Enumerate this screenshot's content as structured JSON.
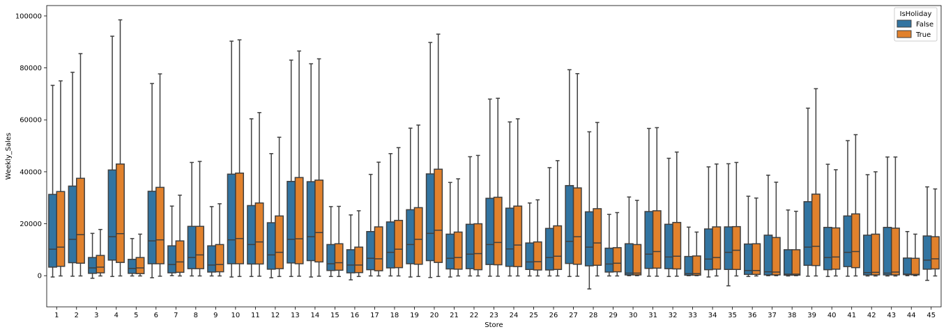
{
  "chart_data": {
    "type": "boxplot",
    "xlabel": "Store",
    "ylabel": "Weekly_Sales",
    "ylim": [
      -12000,
      104000
    ],
    "yticks": [
      0,
      20000,
      40000,
      60000,
      80000,
      100000
    ],
    "grid": false,
    "legend": {
      "title": "IsHoliday",
      "placement": "top-right"
    },
    "colors": {
      "False": "#3274a1",
      "True": "#e1812c",
      "line": "#3f3f3f"
    },
    "categories": [
      "1",
      "2",
      "3",
      "4",
      "5",
      "6",
      "7",
      "8",
      "9",
      "10",
      "11",
      "12",
      "13",
      "14",
      "15",
      "16",
      "17",
      "18",
      "19",
      "20",
      "21",
      "22",
      "23",
      "24",
      "25",
      "26",
      "27",
      "28",
      "29",
      "30",
      "31",
      "32",
      "33",
      "34",
      "35",
      "36",
      "37",
      "38",
      "39",
      "40",
      "41",
      "42",
      "43",
      "44",
      "45"
    ],
    "series": [
      {
        "name": "False",
        "boxes": [
          {
            "whislo": -500,
            "q1": 3300,
            "med": 10200,
            "q3": 31300,
            "whishi": 73300
          },
          {
            "whislo": -200,
            "q1": 5000,
            "med": 14000,
            "q3": 34500,
            "whishi": 78300
          },
          {
            "whislo": -1000,
            "q1": 900,
            "med": 3000,
            "q3": 7000,
            "whishi": 16300
          },
          {
            "whislo": -300,
            "q1": 6000,
            "med": 15000,
            "q3": 40700,
            "whishi": 92200
          },
          {
            "whislo": -100,
            "q1": 900,
            "med": 2800,
            "q3": 6300,
            "whishi": 14300
          },
          {
            "whislo": -800,
            "q1": 4600,
            "med": 13400,
            "q3": 32500,
            "whishi": 74000
          },
          {
            "whislo": 0,
            "q1": 1100,
            "med": 4300,
            "q3": 11500,
            "whishi": 26800
          },
          {
            "whislo": -100,
            "q1": 2700,
            "med": 7000,
            "q3": 19000,
            "whishi": 43600
          },
          {
            "whislo": -100,
            "q1": 1400,
            "med": 4100,
            "q3": 11500,
            "whishi": 26600
          },
          {
            "whislo": -500,
            "q1": 4600,
            "med": 13800,
            "q3": 39100,
            "whishi": 90300
          },
          {
            "whislo": -300,
            "q1": 4500,
            "med": 12000,
            "q3": 27000,
            "whishi": 60400
          },
          {
            "whislo": -800,
            "q1": 2500,
            "med": 8000,
            "q3": 20400,
            "whishi": 47000
          },
          {
            "whislo": -300,
            "q1": 4900,
            "med": 14000,
            "q3": 36300,
            "whishi": 83000
          },
          {
            "whislo": -500,
            "q1": 5800,
            "med": 15000,
            "q3": 36200,
            "whishi": 81600
          },
          {
            "whislo": -300,
            "q1": 2000,
            "med": 4600,
            "q3": 12000,
            "whishi": 26600
          },
          {
            "whislo": -1600,
            "q1": 1100,
            "med": 4100,
            "q3": 10000,
            "whishi": 23400
          },
          {
            "whislo": -100,
            "q1": 2300,
            "med": 6700,
            "q3": 17000,
            "whishi": 39000
          },
          {
            "whislo": -100,
            "q1": 3000,
            "med": 9000,
            "q3": 20700,
            "whishi": 47000
          },
          {
            "whislo": -500,
            "q1": 4600,
            "med": 12000,
            "q3": 25400,
            "whishi": 56800
          },
          {
            "whislo": -700,
            "q1": 5800,
            "med": 16300,
            "q3": 39200,
            "whishi": 89800
          },
          {
            "whislo": -500,
            "q1": 2600,
            "med": 6700,
            "q3": 16000,
            "whishi": 35900
          },
          {
            "whislo": -100,
            "q1": 2700,
            "med": 8300,
            "q3": 19800,
            "whishi": 45800
          },
          {
            "whislo": -200,
            "q1": 4300,
            "med": 12000,
            "q3": 29800,
            "whishi": 68000
          },
          {
            "whislo": -100,
            "q1": 3600,
            "med": 10300,
            "q3": 26000,
            "whishi": 59200
          },
          {
            "whislo": -100,
            "q1": 2400,
            "med": 5300,
            "q3": 12600,
            "whishi": 28000
          },
          {
            "whislo": -100,
            "q1": 2200,
            "med": 7000,
            "q3": 18200,
            "whishi": 41600
          },
          {
            "whislo": -300,
            "q1": 4700,
            "med": 13200,
            "q3": 34700,
            "whishi": 79300
          },
          {
            "whislo": -5100,
            "q1": 3800,
            "med": 11000,
            "q3": 24600,
            "whishi": 55400
          },
          {
            "whislo": -100,
            "q1": 1400,
            "med": 4500,
            "q3": 10600,
            "whishi": 23600
          },
          {
            "whislo": 0,
            "q1": 300,
            "med": 1000,
            "q3": 12300,
            "whishi": 30300
          },
          {
            "whislo": -200,
            "q1": 2800,
            "med": 8300,
            "q3": 24700,
            "whishi": 56700
          },
          {
            "whislo": -300,
            "q1": 2700,
            "med": 7200,
            "q3": 19800,
            "whishi": 45200
          },
          {
            "whislo": 0,
            "q1": 200,
            "med": 800,
            "q3": 7400,
            "whishi": 18700
          },
          {
            "whislo": -500,
            "q1": 2300,
            "med": 6400,
            "q3": 18000,
            "whishi": 41900
          },
          {
            "whislo": -3900,
            "q1": 2400,
            "med": 9000,
            "q3": 18800,
            "whishi": 43100
          },
          {
            "whislo": -300,
            "q1": 500,
            "med": 2000,
            "q3": 12200,
            "whishi": 30600
          },
          {
            "whislo": 0,
            "q1": 300,
            "med": 1500,
            "q3": 15600,
            "whishi": 38700
          },
          {
            "whislo": -100,
            "q1": 200,
            "med": 600,
            "q3": 10000,
            "whishi": 25300
          },
          {
            "whislo": -200,
            "q1": 4000,
            "med": 11000,
            "q3": 28500,
            "whishi": 64500
          },
          {
            "whislo": -300,
            "q1": 2300,
            "med": 7000,
            "q3": 18600,
            "whishi": 42900
          },
          {
            "whislo": -200,
            "q1": 3500,
            "med": 9000,
            "q3": 23000,
            "whishi": 52000
          },
          {
            "whislo": -100,
            "q1": 300,
            "med": 1200,
            "q3": 15600,
            "whishi": 38900
          },
          {
            "whislo": -100,
            "q1": 300,
            "med": 1000,
            "q3": 18600,
            "whishi": 45700
          },
          {
            "whislo": 0,
            "q1": 400,
            "med": 600,
            "q3": 6800,
            "whishi": 17000
          },
          {
            "whislo": -1800,
            "q1": 2500,
            "med": 6000,
            "q3": 15300,
            "whishi": 34200
          }
        ]
      },
      {
        "name": "True",
        "boxes": [
          {
            "whislo": -100,
            "q1": 3600,
            "med": 11000,
            "q3": 32400,
            "whishi": 75000
          },
          {
            "whislo": -100,
            "q1": 4800,
            "med": 15800,
            "q3": 37500,
            "whishi": 85500
          },
          {
            "whislo": -100,
            "q1": 1100,
            "med": 3300,
            "q3": 7800,
            "whishi": 17800
          },
          {
            "whislo": -100,
            "q1": 5100,
            "med": 16200,
            "q3": 43000,
            "whishi": 98500
          },
          {
            "whislo": -100,
            "q1": 800,
            "med": 3000,
            "q3": 7000,
            "whishi": 16000
          },
          {
            "whislo": -200,
            "q1": 4600,
            "med": 13800,
            "q3": 34000,
            "whishi": 77700
          },
          {
            "whislo": -100,
            "q1": 1300,
            "med": 5300,
            "q3": 13400,
            "whishi": 31000
          },
          {
            "whislo": -100,
            "q1": 2700,
            "med": 8000,
            "q3": 19000,
            "whishi": 44000
          },
          {
            "whislo": -100,
            "q1": 1500,
            "med": 4300,
            "q3": 12000,
            "whishi": 27700
          },
          {
            "whislo": -300,
            "q1": 4600,
            "med": 14300,
            "q3": 39500,
            "whishi": 90800
          },
          {
            "whislo": -200,
            "q1": 4500,
            "med": 13000,
            "q3": 28000,
            "whishi": 62800
          },
          {
            "whislo": -300,
            "q1": 2700,
            "med": 9000,
            "q3": 23000,
            "whishi": 53300
          },
          {
            "whislo": -200,
            "q1": 4600,
            "med": 14200,
            "q3": 37800,
            "whishi": 86500
          },
          {
            "whislo": -200,
            "q1": 5300,
            "med": 16600,
            "q3": 36800,
            "whishi": 83500
          },
          {
            "whislo": -300,
            "q1": 2100,
            "med": 5000,
            "q3": 12300,
            "whishi": 26700
          },
          {
            "whislo": -300,
            "q1": 1200,
            "med": 4100,
            "q3": 11000,
            "whishi": 25000
          },
          {
            "whislo": -100,
            "q1": 1900,
            "med": 6500,
            "q3": 18800,
            "whishi": 43700
          },
          {
            "whislo": -100,
            "q1": 3100,
            "med": 10200,
            "q3": 21300,
            "whishi": 49300
          },
          {
            "whislo": -300,
            "q1": 4400,
            "med": 14000,
            "q3": 26200,
            "whishi": 58000
          },
          {
            "whislo": -300,
            "q1": 5100,
            "med": 17500,
            "q3": 41000,
            "whishi": 93000
          },
          {
            "whislo": -100,
            "q1": 2500,
            "med": 7000,
            "q3": 16800,
            "whishi": 37300
          },
          {
            "whislo": -100,
            "q1": 2300,
            "med": 8500,
            "q3": 20000,
            "whishi": 46300
          },
          {
            "whislo": -200,
            "q1": 4200,
            "med": 12800,
            "q3": 30200,
            "whishi": 68300
          },
          {
            "whislo": -100,
            "q1": 3500,
            "med": 11800,
            "q3": 26800,
            "whishi": 60400
          },
          {
            "whislo": -100,
            "q1": 2200,
            "med": 5400,
            "q3": 13000,
            "whishi": 29200
          },
          {
            "whislo": -100,
            "q1": 2400,
            "med": 7500,
            "q3": 19200,
            "whishi": 44300
          },
          {
            "whislo": -200,
            "q1": 4400,
            "med": 15000,
            "q3": 33800,
            "whishi": 77800
          },
          {
            "whislo": -100,
            "q1": 4000,
            "med": 12600,
            "q3": 25800,
            "whishi": 59000
          },
          {
            "whislo": -100,
            "q1": 1500,
            "med": 4800,
            "q3": 10800,
            "whishi": 24300
          },
          {
            "whislo": 0,
            "q1": 300,
            "med": 1000,
            "q3": 12000,
            "whishi": 29000
          },
          {
            "whislo": -200,
            "q1": 2900,
            "med": 9300,
            "q3": 25000,
            "whishi": 57000
          },
          {
            "whislo": -200,
            "q1": 2600,
            "med": 7500,
            "q3": 20500,
            "whishi": 47600
          },
          {
            "whislo": 0,
            "q1": 200,
            "med": 800,
            "q3": 7600,
            "whishi": 16800
          },
          {
            "whislo": -100,
            "q1": 2500,
            "med": 7000,
            "q3": 18800,
            "whishi": 43000
          },
          {
            "whislo": -100,
            "q1": 2400,
            "med": 9800,
            "q3": 18900,
            "whishi": 43600
          },
          {
            "whislo": -100,
            "q1": 500,
            "med": 2000,
            "q3": 12300,
            "whishi": 29900
          },
          {
            "whislo": 0,
            "q1": 300,
            "med": 1400,
            "q3": 14700,
            "whishi": 36000
          },
          {
            "whislo": 0,
            "q1": 200,
            "med": 600,
            "q3": 10000,
            "whishi": 24800
          },
          {
            "whislo": -100,
            "q1": 3900,
            "med": 11300,
            "q3": 31400,
            "whishi": 72000
          },
          {
            "whislo": -100,
            "q1": 2500,
            "med": 7200,
            "q3": 18400,
            "whishi": 40800
          },
          {
            "whislo": -100,
            "q1": 3100,
            "med": 9300,
            "q3": 23800,
            "whishi": 54300
          },
          {
            "whislo": -100,
            "q1": 300,
            "med": 1300,
            "q3": 16000,
            "whishi": 40000
          },
          {
            "whislo": -100,
            "q1": 300,
            "med": 1400,
            "q3": 18300,
            "whishi": 45700
          },
          {
            "whislo": 0,
            "q1": 300,
            "med": 500,
            "q3": 6700,
            "whishi": 16000
          },
          {
            "whislo": -100,
            "q1": 2600,
            "med": 6500,
            "q3": 15000,
            "whishi": 33400
          }
        ]
      }
    ]
  }
}
